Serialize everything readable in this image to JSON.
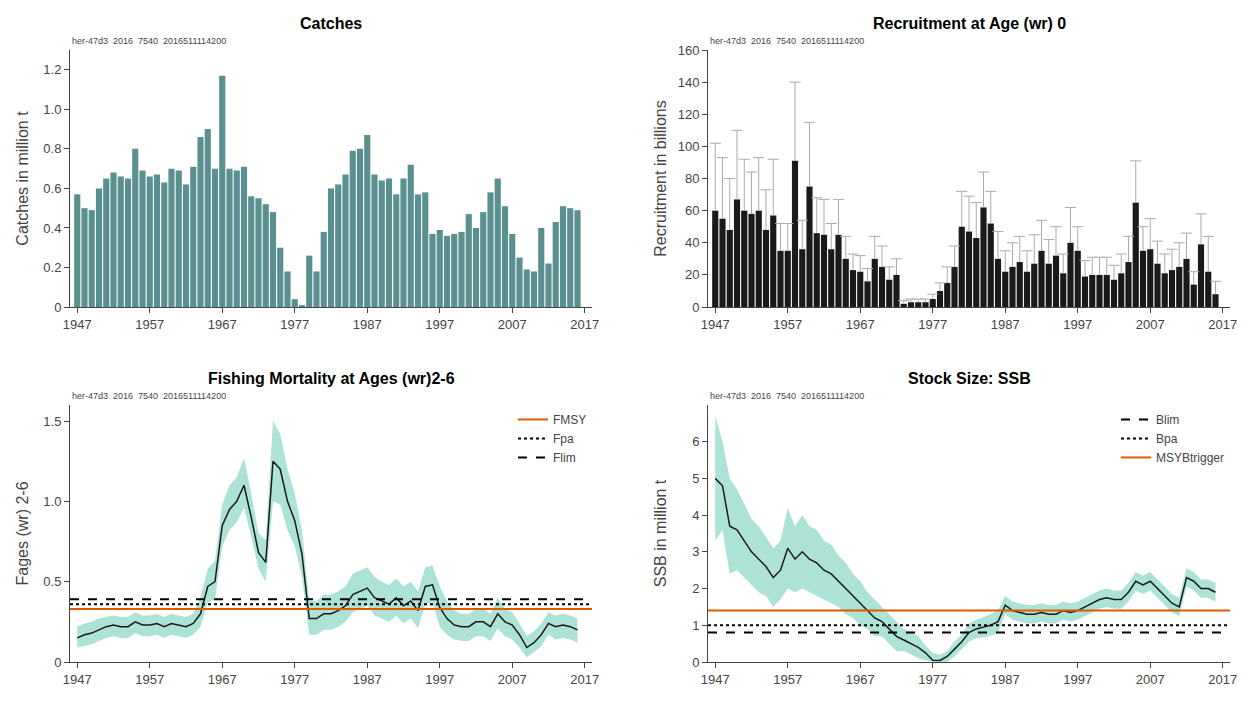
{
  "chart_data": [
    {
      "type": "bar",
      "title": "Catches",
      "ylabel": "Catches in million t",
      "annotations": [
        "her-47d3  2016  7540  2016511114200"
      ],
      "x": [
        1947,
        1948,
        1949,
        1950,
        1951,
        1952,
        1953,
        1954,
        1955,
        1956,
        1957,
        1958,
        1959,
        1960,
        1961,
        1962,
        1963,
        1964,
        1965,
        1966,
        1967,
        1968,
        1969,
        1970,
        1971,
        1972,
        1973,
        1974,
        1975,
        1976,
        1977,
        1978,
        1979,
        1980,
        1981,
        1982,
        1983,
        1984,
        1985,
        1986,
        1987,
        1988,
        1989,
        1990,
        1991,
        1992,
        1993,
        1994,
        1995,
        1996,
        1997,
        1998,
        1999,
        2000,
        2001,
        2002,
        2003,
        2004,
        2005,
        2006,
        2007,
        2008,
        2009,
        2010,
        2011,
        2012,
        2013,
        2014,
        2015,
        2016
      ],
      "values": [
        0.57,
        0.5,
        0.49,
        0.6,
        0.65,
        0.68,
        0.66,
        0.65,
        0.8,
        0.69,
        0.66,
        0.67,
        0.63,
        0.7,
        0.69,
        0.62,
        0.71,
        0.86,
        0.9,
        0.7,
        1.17,
        0.7,
        0.69,
        0.71,
        0.56,
        0.55,
        0.52,
        0.48,
        0.3,
        0.18,
        0.04,
        0.01,
        0.26,
        0.18,
        0.38,
        0.6,
        0.62,
        0.67,
        0.79,
        0.8,
        0.87,
        0.67,
        0.64,
        0.65,
        0.57,
        0.65,
        0.72,
        0.57,
        0.58,
        0.37,
        0.39,
        0.36,
        0.37,
        0.38,
        0.47,
        0.4,
        0.48,
        0.58,
        0.65,
        0.51,
        0.37,
        0.25,
        0.19,
        0.18,
        0.4,
        0.22,
        0.43,
        0.51,
        0.5,
        0.49
      ],
      "color": "#5a9090",
      "xlim": [
        1946,
        2018
      ],
      "xticks": [
        1947,
        1957,
        1967,
        1977,
        1987,
        1997,
        2007,
        2017
      ],
      "ylim": [
        0,
        1.3
      ],
      "yticks": [
        0,
        0.2,
        0.4,
        0.6,
        0.8,
        {
          "value": 1.0,
          "label": "1.0"
        },
        1.2
      ],
      "grid": false
    },
    {
      "type": "bar",
      "title": "Recruitment at Age (wr) 0",
      "ylabel": "Recruitment in billions",
      "annotations": [
        "her-47d3  2016  7540  2016511114200"
      ],
      "x": [
        1947,
        1948,
        1949,
        1950,
        1951,
        1952,
        1953,
        1954,
        1955,
        1956,
        1957,
        1958,
        1959,
        1960,
        1961,
        1962,
        1963,
        1964,
        1965,
        1966,
        1967,
        1968,
        1969,
        1970,
        1971,
        1972,
        1973,
        1974,
        1975,
        1976,
        1977,
        1978,
        1979,
        1980,
        1981,
        1982,
        1983,
        1984,
        1985,
        1986,
        1987,
        1988,
        1989,
        1990,
        1991,
        1992,
        1993,
        1994,
        1995,
        1996,
        1997,
        1998,
        1999,
        2000,
        2001,
        2002,
        2003,
        2004,
        2005,
        2006,
        2007,
        2008,
        2009,
        2010,
        2011,
        2012,
        2013,
        2014,
        2015,
        2016
      ],
      "series": [
        {
          "type": "bar",
          "color": "#1a1a1a",
          "values": [
            60,
            55,
            48,
            67,
            60,
            58,
            60,
            48,
            57,
            35,
            35,
            91,
            36,
            75,
            46,
            45,
            36,
            45,
            30,
            23,
            22,
            16,
            30,
            25,
            17,
            20,
            2,
            3,
            3,
            3,
            5,
            10,
            15,
            25,
            50,
            47,
            43,
            62,
            52,
            30,
            22,
            25,
            28,
            22,
            27,
            35,
            27,
            32,
            21,
            40,
            35,
            19,
            20,
            20,
            20,
            17,
            21,
            28,
            65,
            35,
            36,
            27,
            21,
            23,
            25,
            30,
            14,
            39,
            22,
            8
          ]
        },
        {
          "type": "error_bar",
          "color": "#aaaaaa",
          "upper": [
            102,
            93,
            80,
            110,
            92,
            84,
            93,
            73,
            92,
            52,
            52,
            140,
            54,
            115,
            68,
            67,
            52,
            67,
            44,
            33,
            32,
            24,
            44,
            38,
            25,
            30,
            4,
            5,
            5,
            5,
            8,
            15,
            25,
            38,
            72,
            69,
            65,
            84,
            72,
            47,
            35,
            40,
            44,
            35,
            45,
            54,
            42,
            50,
            33,
            62,
            50,
            29,
            31,
            31,
            31,
            26,
            33,
            44,
            91,
            50,
            55,
            41,
            33,
            36,
            40,
            46,
            22,
            58,
            44,
            16
          ]
        }
      ],
      "xlim": [
        1946,
        2018
      ],
      "xticks": [
        1947,
        1957,
        1967,
        1977,
        1987,
        1997,
        2007,
        2017
      ],
      "ylim": [
        0,
        160
      ],
      "yticks": [
        0,
        20,
        40,
        60,
        80,
        100,
        120,
        140,
        160
      ],
      "grid": false
    },
    {
      "type": "line",
      "title": "Fishing Mortality at Ages (wr)2-6",
      "ylabel": "Fages (wr) 2-6",
      "annotations": [
        "her-47d3  2016  7540  2016511114200"
      ],
      "x": [
        1947,
        1948,
        1949,
        1950,
        1951,
        1952,
        1953,
        1954,
        1955,
        1956,
        1957,
        1958,
        1959,
        1960,
        1961,
        1962,
        1963,
        1964,
        1965,
        1966,
        1967,
        1968,
        1969,
        1970,
        1971,
        1972,
        1973,
        1974,
        1975,
        1976,
        1977,
        1978,
        1979,
        1980,
        1981,
        1982,
        1983,
        1984,
        1985,
        1986,
        1987,
        1988,
        1989,
        1990,
        1991,
        1992,
        1993,
        1994,
        1995,
        1996,
        1997,
        1998,
        1999,
        2000,
        2001,
        2002,
        2003,
        2004,
        2005,
        2006,
        2007,
        2008,
        2009,
        2010,
        2011,
        2012,
        2013,
        2014,
        2015,
        2016
      ],
      "series": [
        {
          "type": "band",
          "color": "#80d4c0",
          "upper": [
            0.22,
            0.24,
            0.25,
            0.27,
            0.28,
            0.29,
            0.28,
            0.28,
            0.31,
            0.29,
            0.29,
            0.3,
            0.28,
            0.3,
            0.29,
            0.28,
            0.3,
            0.4,
            0.58,
            0.63,
            0.98,
            1.1,
            1.15,
            1.27,
            1.05,
            0.8,
            0.76,
            1.5,
            1.42,
            1.2,
            1.05,
            0.82,
            0.38,
            0.38,
            0.42,
            0.42,
            0.44,
            0.47,
            0.55,
            0.57,
            0.59,
            0.53,
            0.5,
            0.48,
            0.52,
            0.47,
            0.5,
            0.44,
            0.59,
            0.6,
            0.47,
            0.38,
            0.32,
            0.3,
            0.3,
            0.33,
            0.33,
            0.3,
            0.4,
            0.33,
            0.31,
            0.24,
            0.16,
            0.19,
            0.24,
            0.31,
            0.29,
            0.3,
            0.29,
            0.27
          ],
          "lower": [
            0.09,
            0.1,
            0.11,
            0.13,
            0.15,
            0.16,
            0.15,
            0.15,
            0.18,
            0.16,
            0.16,
            0.17,
            0.15,
            0.17,
            0.16,
            0.15,
            0.17,
            0.22,
            0.37,
            0.39,
            0.72,
            0.82,
            0.87,
            0.96,
            0.78,
            0.58,
            0.5,
            1.0,
            0.98,
            0.82,
            0.72,
            0.53,
            0.17,
            0.17,
            0.2,
            0.2,
            0.22,
            0.25,
            0.31,
            0.33,
            0.35,
            0.29,
            0.27,
            0.25,
            0.29,
            0.24,
            0.27,
            0.21,
            0.36,
            0.37,
            0.22,
            0.17,
            0.14,
            0.13,
            0.13,
            0.16,
            0.16,
            0.13,
            0.21,
            0.16,
            0.14,
            0.09,
            0.03,
            0.06,
            0.1,
            0.17,
            0.14,
            0.15,
            0.14,
            0.12
          ]
        },
        {
          "type": "line",
          "color": "#1a1a1a",
          "values": [
            0.15,
            0.17,
            0.18,
            0.2,
            0.22,
            0.23,
            0.22,
            0.22,
            0.25,
            0.23,
            0.23,
            0.24,
            0.22,
            0.24,
            0.23,
            0.22,
            0.24,
            0.3,
            0.47,
            0.5,
            0.85,
            0.95,
            1.0,
            1.1,
            0.9,
            0.68,
            0.62,
            1.25,
            1.2,
            1.0,
            0.88,
            0.67,
            0.27,
            0.27,
            0.3,
            0.3,
            0.32,
            0.35,
            0.42,
            0.44,
            0.46,
            0.4,
            0.38,
            0.36,
            0.4,
            0.35,
            0.38,
            0.32,
            0.47,
            0.48,
            0.34,
            0.27,
            0.23,
            0.22,
            0.22,
            0.25,
            0.25,
            0.22,
            0.3,
            0.25,
            0.23,
            0.17,
            0.09,
            0.12,
            0.17,
            0.24,
            0.22,
            0.23,
            0.22,
            0.2
          ]
        },
        {
          "type": "hline",
          "name": "Flim",
          "color": "#000000",
          "line_style": "dashed",
          "value": 0.39
        },
        {
          "type": "hline",
          "name": "Fpa",
          "color": "#000000",
          "line_style": "dotted",
          "value": 0.36
        },
        {
          "type": "hline",
          "name": "FMSY",
          "color": "#e05a00",
          "line_style": "solid",
          "value": 0.33
        }
      ],
      "legend": "upper right",
      "xlim": [
        1946,
        2018
      ],
      "xticks": [
        1947,
        1957,
        1967,
        1977,
        1987,
        1997,
        2007,
        2017
      ],
      "ylim": [
        0,
        1.6
      ],
      "yticks": [
        0,
        0.5,
        {
          "value": 1.0,
          "label": "1.0"
        },
        1.5
      ],
      "grid": false
    },
    {
      "type": "line",
      "title": "Stock Size: SSB",
      "ylabel": "SSB in million t",
      "annotations": [
        "her-47d3  2016  7540  2016511114200"
      ],
      "x": [
        1947,
        1948,
        1949,
        1950,
        1951,
        1952,
        1953,
        1954,
        1955,
        1956,
        1957,
        1958,
        1959,
        1960,
        1961,
        1962,
        1963,
        1964,
        1965,
        1966,
        1967,
        1968,
        1969,
        1970,
        1971,
        1972,
        1973,
        1974,
        1975,
        1976,
        1977,
        1978,
        1979,
        1980,
        1981,
        1982,
        1983,
        1984,
        1985,
        1986,
        1987,
        1988,
        1989,
        1990,
        1991,
        1992,
        1993,
        1994,
        1995,
        1996,
        1997,
        1998,
        1999,
        2000,
        2001,
        2002,
        2003,
        2004,
        2005,
        2006,
        2007,
        2008,
        2009,
        2010,
        2011,
        2012,
        2013,
        2014,
        2015,
        2016
      ],
      "series": [
        {
          "type": "band",
          "color": "#80d4c0",
          "upper": [
            6.7,
            6.0,
            5.0,
            4.7,
            4.3,
            3.9,
            3.7,
            3.4,
            3.1,
            3.3,
            4.2,
            3.7,
            4.0,
            3.7,
            3.6,
            3.3,
            3.2,
            2.9,
            2.7,
            2.4,
            2.2,
            1.9,
            1.7,
            1.5,
            1.3,
            1.1,
            0.9,
            0.8,
            0.7,
            0.45,
            0.25,
            0.2,
            0.3,
            0.55,
            0.75,
            1.05,
            1.15,
            1.22,
            1.3,
            1.4,
            1.8,
            1.65,
            1.6,
            1.55,
            1.55,
            1.6,
            1.55,
            1.55,
            1.65,
            1.6,
            1.65,
            1.75,
            1.85,
            1.95,
            2.0,
            1.95,
            1.95,
            2.15,
            2.45,
            2.35,
            2.45,
            2.25,
            2.05,
            1.85,
            1.75,
            2.55,
            2.45,
            2.25,
            2.25,
            2.15
          ],
          "lower": [
            3.3,
            3.6,
            2.4,
            2.5,
            2.3,
            2.1,
            1.9,
            1.8,
            1.5,
            1.7,
            2.0,
            1.9,
            2.0,
            1.9,
            1.8,
            1.7,
            1.6,
            1.5,
            1.3,
            1.2,
            1.0,
            0.9,
            0.7,
            0.7,
            0.5,
            0.3,
            0.3,
            0.2,
            0.1,
            0.05,
            0.0,
            0.0,
            0.0,
            0.15,
            0.35,
            0.55,
            0.65,
            0.68,
            0.7,
            0.8,
            1.3,
            1.15,
            1.1,
            1.05,
            1.05,
            1.1,
            1.05,
            1.05,
            1.15,
            1.1,
            1.15,
            1.25,
            1.35,
            1.45,
            1.5,
            1.45,
            1.45,
            1.65,
            1.95,
            1.85,
            1.95,
            1.75,
            1.55,
            1.35,
            1.25,
            2.05,
            1.95,
            1.75,
            1.75,
            1.65
          ]
        },
        {
          "type": "line",
          "color": "#1a1a1a",
          "values": [
            5.0,
            4.8,
            3.7,
            3.6,
            3.3,
            3.0,
            2.8,
            2.6,
            2.3,
            2.5,
            3.1,
            2.8,
            3.0,
            2.8,
            2.7,
            2.5,
            2.4,
            2.2,
            2.0,
            1.8,
            1.6,
            1.4,
            1.2,
            1.1,
            0.9,
            0.7,
            0.6,
            0.5,
            0.4,
            0.25,
            0.05,
            0.04,
            0.15,
            0.35,
            0.55,
            0.8,
            0.9,
            0.95,
            1.0,
            1.1,
            1.55,
            1.4,
            1.35,
            1.3,
            1.3,
            1.35,
            1.3,
            1.3,
            1.4,
            1.35,
            1.4,
            1.5,
            1.6,
            1.7,
            1.75,
            1.7,
            1.7,
            1.9,
            2.2,
            2.1,
            2.2,
            2.0,
            1.8,
            1.6,
            1.5,
            2.3,
            2.2,
            2.0,
            2.0,
            1.9
          ]
        },
        {
          "type": "hline",
          "name": "Blim",
          "color": "#000000",
          "line_style": "dashed",
          "value": 0.8
        },
        {
          "type": "hline",
          "name": "Bpa",
          "color": "#000000",
          "line_style": "dotted",
          "value": 1.0
        },
        {
          "type": "hline",
          "name": "MSYBtrigger",
          "color": "#e05a00",
          "line_style": "solid",
          "value": 1.4
        }
      ],
      "legend": "upper right",
      "xlim": [
        1946,
        2018
      ],
      "xticks": [
        1947,
        1957,
        1967,
        1977,
        1987,
        1997,
        2007,
        2017
      ],
      "ylim": [
        0,
        7
      ],
      "yticks": [
        0,
        1,
        2,
        3,
        4,
        5,
        6
      ],
      "grid": false
    }
  ]
}
